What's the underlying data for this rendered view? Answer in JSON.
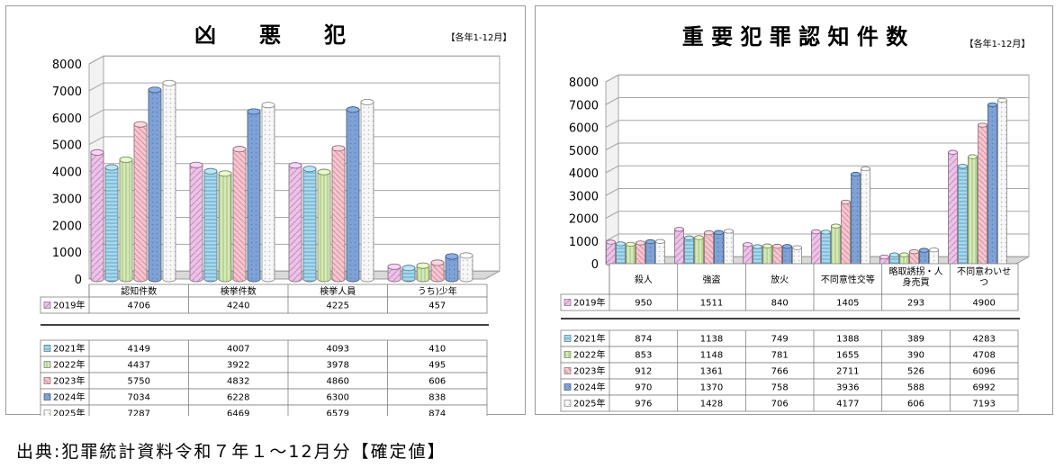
{
  "source_note": "出典:犯罪統計資料令和７年１～12月分【確定値】",
  "colors": {
    "2019": "#ebc3e6",
    "2021": "#a9d7ea",
    "2022": "#d6e9b9",
    "2023": "#f3c7d0",
    "2024": "#7ea2d6",
    "2025": "#f7f7f7"
  },
  "chart_data": [
    {
      "type": "bar",
      "title": "凶　　悪　　犯",
      "subtitle": "【各年1-12月】",
      "categories": [
        "認知件数",
        "検挙件数",
        "検挙人員",
        "うち)少年"
      ],
      "yticks": [
        "8000",
        "7000",
        "6000",
        "5000",
        "4000",
        "3000",
        "2000",
        "1000",
        "0"
      ],
      "ylim": [
        0,
        8000
      ],
      "series": [
        {
          "name": "2019年",
          "key": "2019",
          "values": [
            4706,
            4240,
            4225,
            457
          ]
        },
        {
          "name": "2021年",
          "key": "2021",
          "values": [
            4149,
            4007,
            4093,
            410
          ]
        },
        {
          "name": "2022年",
          "key": "2022",
          "values": [
            4437,
            3922,
            3978,
            495
          ]
        },
        {
          "name": "2023年",
          "key": "2023",
          "values": [
            5750,
            4832,
            4860,
            606
          ]
        },
        {
          "name": "2024年",
          "key": "2024",
          "values": [
            7034,
            6228,
            6300,
            838
          ]
        },
        {
          "name": "2025年",
          "key": "2025",
          "values": [
            7287,
            6469,
            6579,
            874
          ]
        }
      ]
    },
    {
      "type": "bar",
      "title": "重 要 犯 罪 認 知 件 数",
      "subtitle": "【各年1-12月】",
      "categories": [
        "殺人",
        "強盗",
        "放火",
        "不同意性交等",
        "略取誘拐・人\n身売買",
        "不同意わいせ\nつ"
      ],
      "yticks": [
        "8000",
        "7000",
        "6000",
        "5000",
        "4000",
        "3000",
        "2000",
        "1000",
        "0"
      ],
      "ylim": [
        0,
        8000
      ],
      "series": [
        {
          "name": "2019年",
          "key": "2019",
          "values": [
            950,
            1511,
            840,
            1405,
            293,
            4900
          ]
        },
        {
          "name": "2021年",
          "key": "2021",
          "values": [
            874,
            1138,
            749,
            1388,
            389,
            4283
          ]
        },
        {
          "name": "2022年",
          "key": "2022",
          "values": [
            853,
            1148,
            781,
            1655,
            390,
            4708
          ]
        },
        {
          "name": "2023年",
          "key": "2023",
          "values": [
            912,
            1361,
            766,
            2711,
            526,
            6096
          ]
        },
        {
          "name": "2024年",
          "key": "2024",
          "values": [
            970,
            1370,
            758,
            3936,
            588,
            6992
          ]
        },
        {
          "name": "2025年",
          "key": "2025",
          "values": [
            976,
            1428,
            706,
            4177,
            606,
            7193
          ]
        }
      ]
    }
  ]
}
